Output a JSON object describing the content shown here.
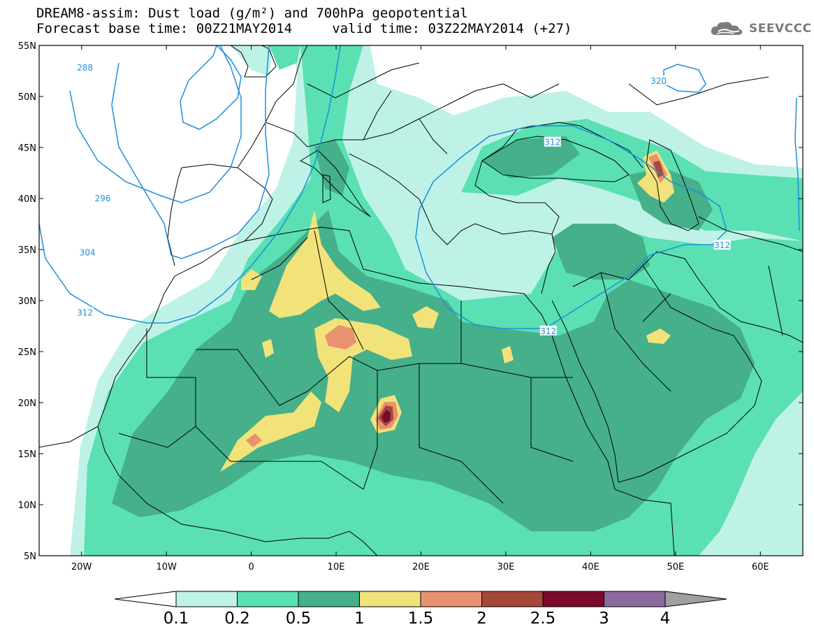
{
  "header": {
    "title_line1": "DREAM8-assim: Dust load (g/m²) and 700hPa geopotential",
    "title_line2": "Forecast base time: 00Z21MAY2014     valid time: 03Z22MAY2014 (+27)",
    "logo_text": "SEEVCCC"
  },
  "map": {
    "lon_range": [
      -25,
      65
    ],
    "lat_range": [
      5,
      55
    ],
    "lat_labels": [
      {
        "lat": 55,
        "text": "55N"
      },
      {
        "lat": 50,
        "text": "50N"
      },
      {
        "lat": 45,
        "text": "45N"
      },
      {
        "lat": 40,
        "text": "40N"
      },
      {
        "lat": 35,
        "text": "35N"
      },
      {
        "lat": 30,
        "text": "30N"
      },
      {
        "lat": 25,
        "text": "25N"
      },
      {
        "lat": 20,
        "text": "20N"
      },
      {
        "lat": 15,
        "text": "15N"
      },
      {
        "lat": 10,
        "text": "10N"
      },
      {
        "lat": 5,
        "text": "5N"
      }
    ],
    "lon_labels": [
      {
        "lon": -20,
        "text": "20W"
      },
      {
        "lon": -10,
        "text": "10W"
      },
      {
        "lon": 0,
        "text": "0"
      },
      {
        "lon": 10,
        "text": "10E"
      },
      {
        "lon": 20,
        "text": "20E"
      },
      {
        "lon": 30,
        "text": "30E"
      },
      {
        "lon": 40,
        "text": "40E"
      },
      {
        "lon": 50,
        "text": "50E"
      },
      {
        "lon": 60,
        "text": "60E"
      }
    ],
    "contour_labels": [
      {
        "text": "288",
        "lon": -19.6,
        "lat": 52.8
      },
      {
        "text": "296",
        "lon": -17.5,
        "lat": 40.0
      },
      {
        "text": "304",
        "lon": -19.3,
        "lat": 34.7
      },
      {
        "text": "312",
        "lon": -19.6,
        "lat": 28.8
      },
      {
        "text": "312",
        "lon": 35.0,
        "lat": 27.0
      },
      {
        "text": "312",
        "lon": 35.5,
        "lat": 45.5
      },
      {
        "text": "312",
        "lon": 55.5,
        "lat": 35.4
      },
      {
        "text": "320",
        "lon": 48.0,
        "lat": 51.5
      }
    ]
  },
  "colorbar": {
    "labels": [
      "0.1",
      "0.2",
      "0.5",
      "1",
      "1.5",
      "2",
      "2.5",
      "3",
      "4"
    ],
    "colors": [
      "#bff2e7",
      "#5ae0b3",
      "#45b08a",
      "#f2e27a",
      "#e89270",
      "#a5473a",
      "#7a0a2a",
      "#8d6a9e"
    ],
    "over_color": "#a0a0a0"
  },
  "dust_colors": {
    "c1": "#bff2e7",
    "c2": "#5ae0b3",
    "c3": "#45b08a",
    "c4": "#f2e27a",
    "c5": "#e89270",
    "c6": "#a5473a",
    "c7": "#7a0a2a"
  },
  "contour_color": "#1e8fd8",
  "coast_color": "#000000"
}
